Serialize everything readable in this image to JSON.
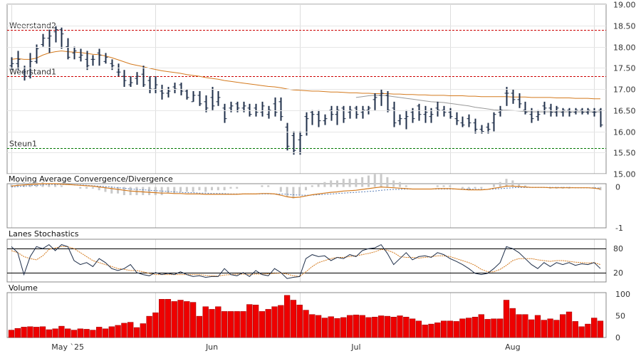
{
  "chart_data": [
    {
      "type": "ohlc",
      "panel": "price",
      "yticks": [
        15.0,
        15.5,
        16.0,
        16.5,
        17.0,
        17.5,
        18.0,
        18.5,
        19.0
      ],
      "ytick_labels": [
        "15.00",
        "15.50",
        "16.00",
        "16.50",
        "17.00",
        "17.50",
        "18.00",
        "18.50",
        "19.00"
      ],
      "ylim": [
        15.0,
        19.0
      ],
      "levels": [
        {
          "label": "Weerstand2",
          "value": 18.4,
          "color": "#cc0000"
        },
        {
          "label": "Weerstand1",
          "value": 17.3,
          "color": "#cc0000"
        },
        {
          "label": "Steun1",
          "value": 15.6,
          "color": "#007700"
        }
      ],
      "ohlc": [
        [
          17.55,
          17.75,
          17.45,
          17.6
        ],
        [
          17.6,
          17.9,
          17.45,
          17.7
        ],
        [
          17.4,
          17.55,
          17.2,
          17.3
        ],
        [
          17.3,
          17.85,
          17.25,
          17.65
        ],
        [
          17.65,
          18.05,
          17.6,
          17.95
        ],
        [
          18.05,
          18.3,
          18.0,
          18.2
        ],
        [
          18.2,
          18.4,
          17.85,
          18.25
        ],
        [
          18.35,
          18.5,
          18.1,
          18.4
        ],
        [
          18.4,
          18.45,
          17.95,
          18.3
        ],
        [
          18.0,
          18.2,
          17.7,
          17.75
        ],
        [
          17.85,
          18.0,
          17.7,
          17.9
        ],
        [
          17.75,
          17.95,
          17.65,
          17.8
        ],
        [
          17.7,
          17.9,
          17.45,
          17.55
        ],
        [
          17.7,
          17.8,
          17.55,
          17.7
        ],
        [
          17.85,
          17.95,
          17.55,
          17.8
        ],
        [
          17.65,
          17.85,
          17.6,
          17.75
        ],
        [
          17.6,
          17.7,
          17.45,
          17.55
        ],
        [
          17.4,
          17.6,
          17.3,
          17.4
        ],
        [
          17.3,
          17.45,
          17.05,
          17.2
        ],
        [
          17.1,
          17.3,
          17.05,
          17.15
        ],
        [
          17.25,
          17.4,
          17.1,
          17.3
        ],
        [
          17.35,
          17.55,
          17.05,
          17.1
        ],
        [
          17.2,
          17.3,
          16.9,
          17.0
        ],
        [
          17.0,
          17.3,
          16.9,
          17.1
        ],
        [
          16.95,
          17.1,
          16.75,
          16.9
        ],
        [
          16.9,
          17.05,
          16.8,
          16.95
        ],
        [
          17.05,
          17.15,
          16.9,
          17.0
        ],
        [
          17.1,
          17.15,
          16.85,
          16.95
        ],
        [
          16.95,
          17.0,
          16.75,
          16.8
        ],
        [
          16.7,
          16.95,
          16.7,
          16.85
        ],
        [
          16.85,
          16.95,
          16.6,
          16.65
        ],
        [
          16.7,
          16.85,
          16.45,
          16.55
        ],
        [
          16.8,
          17.05,
          16.5,
          16.6
        ],
        [
          16.7,
          16.95,
          16.6,
          16.8
        ],
        [
          16.55,
          16.65,
          16.2,
          16.3
        ],
        [
          16.55,
          16.7,
          16.45,
          16.6
        ],
        [
          16.65,
          16.7,
          16.45,
          16.55
        ],
        [
          16.55,
          16.7,
          16.45,
          16.6
        ],
        [
          16.55,
          16.65,
          16.35,
          16.4
        ],
        [
          16.55,
          16.65,
          16.35,
          16.45
        ],
        [
          16.45,
          16.7,
          16.35,
          16.6
        ],
        [
          16.4,
          16.6,
          16.3,
          16.5
        ],
        [
          16.65,
          16.8,
          16.35,
          16.45
        ],
        [
          16.7,
          16.8,
          16.25,
          16.35
        ],
        [
          16.1,
          16.2,
          15.55,
          15.65
        ],
        [
          15.9,
          16.0,
          15.45,
          15.55
        ],
        [
          15.8,
          16.0,
          15.45,
          15.9
        ],
        [
          16.35,
          16.45,
          15.9,
          16.3
        ],
        [
          16.45,
          16.5,
          16.15,
          16.4
        ],
        [
          16.4,
          16.5,
          16.1,
          16.25
        ],
        [
          16.25,
          16.4,
          16.15,
          16.3
        ],
        [
          16.5,
          16.6,
          16.25,
          16.4
        ],
        [
          16.4,
          16.6,
          16.15,
          16.5
        ],
        [
          16.55,
          16.6,
          16.2,
          16.3
        ],
        [
          16.45,
          16.6,
          16.3,
          16.5
        ],
        [
          16.55,
          16.6,
          16.3,
          16.4
        ],
        [
          16.45,
          16.6,
          16.3,
          16.5
        ],
        [
          16.5,
          16.6,
          16.4,
          16.55
        ],
        [
          16.75,
          16.9,
          16.5,
          16.8
        ],
        [
          16.85,
          17.0,
          16.6,
          16.9
        ],
        [
          16.85,
          16.95,
          16.45,
          16.5
        ],
        [
          16.55,
          16.7,
          16.1,
          16.2
        ],
        [
          16.25,
          16.4,
          16.15,
          16.3
        ],
        [
          16.3,
          16.5,
          16.05,
          16.35
        ],
        [
          16.45,
          16.55,
          16.2,
          16.3
        ],
        [
          16.6,
          16.65,
          16.25,
          16.4
        ],
        [
          16.4,
          16.6,
          16.2,
          16.45
        ],
        [
          16.35,
          16.55,
          16.2,
          16.4
        ],
        [
          16.55,
          16.7,
          16.35,
          16.5
        ],
        [
          16.5,
          16.6,
          16.35,
          16.45
        ],
        [
          16.45,
          16.55,
          16.3,
          16.35
        ],
        [
          16.3,
          16.45,
          16.15,
          16.25
        ],
        [
          16.2,
          16.35,
          16.1,
          16.15
        ],
        [
          16.3,
          16.4,
          16.1,
          16.2
        ],
        [
          16.2,
          16.3,
          15.95,
          16.05
        ],
        [
          16.05,
          16.15,
          15.95,
          16.0
        ],
        [
          16.1,
          16.2,
          15.95,
          16.05
        ],
        [
          16.2,
          16.45,
          16.0,
          16.4
        ],
        [
          16.45,
          16.6,
          16.35,
          16.5
        ],
        [
          16.9,
          17.05,
          16.6,
          16.9
        ],
        [
          16.9,
          17.0,
          16.65,
          16.75
        ],
        [
          16.75,
          16.9,
          16.55,
          16.65
        ],
        [
          16.5,
          16.7,
          16.4,
          16.45
        ],
        [
          16.4,
          16.55,
          16.2,
          16.3
        ],
        [
          16.35,
          16.5,
          16.25,
          16.4
        ],
        [
          16.6,
          16.7,
          16.4,
          16.55
        ],
        [
          16.55,
          16.65,
          16.35,
          16.45
        ],
        [
          16.45,
          16.6,
          16.35,
          16.55
        ],
        [
          16.45,
          16.55,
          16.35,
          16.5
        ],
        [
          16.5,
          16.55,
          16.35,
          16.45
        ],
        [
          16.45,
          16.55,
          16.4,
          16.5
        ],
        [
          16.5,
          16.55,
          16.4,
          16.45
        ],
        [
          16.45,
          16.55,
          16.4,
          16.5
        ],
        [
          16.45,
          16.55,
          16.35,
          16.45
        ],
        [
          16.5,
          16.55,
          16.1,
          16.15
        ]
      ],
      "ma_long": [
        17.7,
        17.72,
        17.7,
        17.7,
        17.73,
        17.8,
        17.85,
        17.88,
        17.9,
        17.88,
        17.87,
        17.86,
        17.84,
        17.82,
        17.81,
        17.78,
        17.74,
        17.69,
        17.64,
        17.59,
        17.56,
        17.53,
        17.49,
        17.46,
        17.43,
        17.41,
        17.39,
        17.37,
        17.34,
        17.32,
        17.3,
        17.27,
        17.25,
        17.23,
        17.2,
        17.18,
        17.16,
        17.14,
        17.12,
        17.1,
        17.08,
        17.06,
        17.05,
        17.03,
        17.0,
        16.98,
        16.97,
        16.96,
        16.95,
        16.95,
        16.94,
        16.93,
        16.93,
        16.92,
        16.91,
        16.91,
        16.9,
        16.9,
        16.89,
        16.89,
        16.89,
        16.88,
        16.88,
        16.87,
        16.87,
        16.86,
        16.86,
        16.85,
        16.85,
        16.85,
        16.84,
        16.84,
        16.84,
        16.83,
        16.83,
        16.82,
        16.82,
        16.82,
        16.82,
        16.82,
        16.81,
        16.81,
        16.81,
        16.8,
        16.8,
        16.8,
        16.8,
        16.79,
        16.79,
        16.79,
        16.78,
        16.78,
        16.78,
        16.77,
        16.77
      ],
      "ma_short_x_range": [
        55,
        94
      ],
      "ma_short": [
        16.8,
        16.82,
        16.84,
        16.85,
        16.85,
        16.84,
        16.82,
        16.8,
        16.78,
        16.76,
        16.74,
        16.72,
        16.7,
        16.69,
        16.68,
        16.66,
        16.64,
        16.62,
        16.6,
        16.57,
        16.55,
        16.53,
        16.51,
        16.5,
        16.5,
        16.49,
        16.48,
        16.47,
        16.46,
        16.46,
        16.46,
        16.46,
        16.46,
        16.46,
        16.46,
        16.46,
        16.46,
        16.46,
        16.46,
        16.46
      ]
    },
    {
      "type": "line",
      "panel": "macd",
      "title": "Moving Average Convergence/Divergence",
      "yticks": [
        0,
        -1
      ],
      "ytick_labels": [
        "0",
        "-1"
      ],
      "ylim": [
        -1.0,
        0.08
      ],
      "macd": [
        0.02,
        0.04,
        0.05,
        0.06,
        0.07,
        0.08,
        0.08,
        0.08,
        0.07,
        0.06,
        0.05,
        0.04,
        0.03,
        0.02,
        0.0,
        -0.02,
        -0.04,
        -0.06,
        -0.08,
        -0.1,
        -0.11,
        -0.12,
        -0.13,
        -0.14,
        -0.15,
        -0.15,
        -0.16,
        -0.16,
        -0.17,
        -0.17,
        -0.17,
        -0.18,
        -0.18,
        -0.18,
        -0.18,
        -0.18,
        -0.18,
        -0.17,
        -0.17,
        -0.17,
        -0.16,
        -0.16,
        -0.17,
        -0.2,
        -0.24,
        -0.26,
        -0.25,
        -0.22,
        -0.19,
        -0.17,
        -0.15,
        -0.13,
        -0.12,
        -0.1,
        -0.09,
        -0.08,
        -0.06,
        -0.04,
        -0.02,
        0.0,
        -0.01,
        -0.02,
        -0.03,
        -0.04,
        -0.05,
        -0.05,
        -0.05,
        -0.05,
        -0.04,
        -0.04,
        -0.04,
        -0.05,
        -0.06,
        -0.07,
        -0.07,
        -0.07,
        -0.06,
        -0.03,
        -0.01,
        0.02,
        0.02,
        0.01,
        0.0,
        -0.01,
        -0.01,
        -0.01,
        -0.02,
        -0.02,
        -0.02,
        -0.02,
        -0.02,
        -0.02,
        -0.02,
        -0.03,
        -0.05
      ],
      "signal": [
        0.0,
        0.01,
        0.02,
        0.03,
        0.04,
        0.05,
        0.06,
        0.06,
        0.06,
        0.06,
        0.05,
        0.05,
        0.04,
        0.03,
        0.02,
        0.01,
        0.0,
        -0.02,
        -0.03,
        -0.05,
        -0.06,
        -0.07,
        -0.08,
        -0.09,
        -0.1,
        -0.11,
        -0.12,
        -0.13,
        -0.14,
        -0.14,
        -0.15,
        -0.15,
        -0.16,
        -0.16,
        -0.16,
        -0.17,
        -0.17,
        -0.17,
        -0.17,
        -0.17,
        -0.17,
        -0.17,
        -0.17,
        -0.17,
        -0.18,
        -0.19,
        -0.2,
        -0.2,
        -0.2,
        -0.19,
        -0.18,
        -0.17,
        -0.16,
        -0.15,
        -0.14,
        -0.13,
        -0.12,
        -0.11,
        -0.1,
        -0.08,
        -0.07,
        -0.06,
        -0.06,
        -0.05,
        -0.05,
        -0.05,
        -0.05,
        -0.05,
        -0.05,
        -0.05,
        -0.05,
        -0.05,
        -0.05,
        -0.05,
        -0.06,
        -0.06,
        -0.06,
        -0.05,
        -0.04,
        -0.03,
        -0.02,
        -0.01,
        -0.01,
        -0.01,
        -0.01,
        -0.01,
        -0.01,
        -0.01,
        -0.01,
        -0.01,
        -0.02,
        -0.02,
        -0.02,
        -0.02,
        -0.03
      ]
    },
    {
      "type": "line",
      "panel": "stochastics",
      "title": "Lanes Stochastics",
      "yticks": [
        80,
        20
      ],
      "ytick_labels": [
        "80",
        "20"
      ],
      "ylim": [
        0,
        100
      ],
      "levels": [
        80,
        20
      ],
      "k": [
        85,
        70,
        15,
        60,
        85,
        80,
        90,
        75,
        90,
        85,
        50,
        40,
        45,
        35,
        55,
        45,
        30,
        25,
        30,
        40,
        20,
        15,
        12,
        20,
        15,
        18,
        15,
        22,
        15,
        10,
        12,
        8,
        10,
        10,
        30,
        15,
        12,
        20,
        10,
        25,
        15,
        12,
        30,
        20,
        5,
        8,
        10,
        55,
        65,
        60,
        62,
        50,
        58,
        55,
        65,
        60,
        75,
        80,
        82,
        90,
        68,
        40,
        55,
        70,
        52,
        60,
        62,
        58,
        70,
        65,
        55,
        48,
        40,
        30,
        18,
        15,
        18,
        30,
        45,
        85,
        80,
        70,
        55,
        40,
        30,
        45,
        35,
        45,
        40,
        45,
        38,
        42,
        40,
        45,
        30
      ],
      "d": [
        75,
        70,
        60,
        55,
        52,
        62,
        78,
        82,
        85,
        85,
        80,
        70,
        60,
        50,
        45,
        40,
        35,
        30,
        28,
        25,
        25,
        22,
        18,
        15,
        15,
        15,
        15,
        15,
        15,
        15,
        15,
        13,
        12,
        11,
        14,
        15,
        16,
        16,
        15,
        16,
        16,
        17,
        18,
        19,
        16,
        12,
        10,
        22,
        35,
        45,
        50,
        55,
        58,
        58,
        60,
        62,
        65,
        68,
        72,
        78,
        76,
        70,
        60,
        58,
        58,
        56,
        58,
        60,
        62,
        62,
        60,
        55,
        50,
        45,
        38,
        28,
        22,
        22,
        28,
        38,
        50,
        55,
        55,
        55,
        52,
        50,
        48,
        50,
        50,
        48,
        46,
        45,
        44,
        45,
        40
      ]
    },
    {
      "type": "bar",
      "panel": "volume",
      "title": "Volume",
      "yticks": [
        100,
        50,
        0
      ],
      "ytick_labels": [
        "100",
        "50",
        "0"
      ],
      "ylim": [
        0,
        100
      ],
      "x_tick_labels": [
        {
          "label": "May `25",
          "index": 9
        },
        {
          "label": "Jun",
          "index": 32
        },
        {
          "label": "Jul",
          "index": 55
        },
        {
          "label": "Aug",
          "index": 80
        }
      ],
      "values": [
        17,
        21,
        24,
        25,
        24,
        25,
        18,
        20,
        26,
        20,
        17,
        20,
        19,
        17,
        24,
        20,
        25,
        28,
        33,
        35,
        23,
        32,
        49,
        57,
        88,
        88,
        83,
        86,
        83,
        81,
        49,
        71,
        65,
        71,
        60,
        60,
        60,
        60,
        76,
        75,
        60,
        65,
        71,
        74,
        97,
        86,
        75,
        63,
        53,
        51,
        45,
        48,
        44,
        46,
        51,
        52,
        51,
        46,
        47,
        50,
        49,
        47,
        50,
        47,
        43,
        38,
        29,
        31,
        34,
        38,
        38,
        37,
        43,
        45,
        47,
        53,
        42,
        43,
        43,
        86,
        67,
        53,
        53,
        41,
        51,
        40,
        43,
        40,
        53,
        59,
        37,
        25,
        31,
        45,
        38
      ]
    }
  ]
}
